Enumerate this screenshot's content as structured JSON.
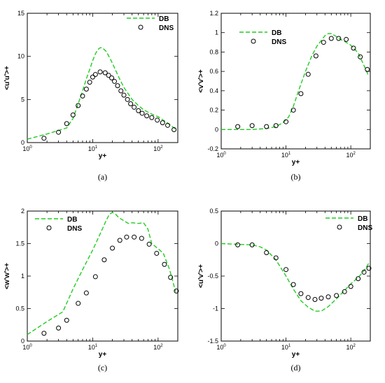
{
  "chart_data": [
    {
      "type": "line",
      "caption": "(a)",
      "xlabel": "y+",
      "ylabel": "<u'u'>+",
      "xscale": "log",
      "xlim": [
        1,
        200
      ],
      "ylim": [
        0,
        15
      ],
      "yticks": [
        0,
        5,
        10,
        15
      ],
      "ytick_labels": [
        "0",
        "5",
        "10",
        "15"
      ],
      "legend_position": "top-right",
      "series": [
        {
          "name": "DB",
          "style": "dashed-line",
          "color": "#22cc22",
          "x": [
            1,
            2,
            3,
            4,
            5,
            6,
            7,
            8,
            9,
            10,
            11,
            12,
            13,
            14,
            16,
            18,
            20,
            25,
            30,
            40,
            50,
            60,
            80,
            100,
            120,
            150,
            190
          ],
          "y": [
            0.4,
            1.0,
            1.4,
            1.7,
            2.8,
            4.5,
            6.0,
            7.4,
            8.5,
            9.5,
            10.3,
            10.8,
            11.0,
            11.0,
            10.6,
            9.9,
            9.2,
            7.6,
            6.4,
            5.0,
            4.3,
            3.8,
            3.3,
            3.0,
            2.6,
            2.1,
            1.5
          ]
        },
        {
          "name": "DNS",
          "style": "open-circle",
          "color": "#000000",
          "x": [
            1.8,
            3.0,
            4.0,
            5.0,
            6.0,
            7.0,
            8.0,
            9.0,
            10.0,
            11.0,
            13.0,
            15.5,
            17.5,
            19.5,
            21.5,
            24.0,
            27.0,
            30.0,
            34.0,
            38.0,
            43.0,
            50.0,
            57.0,
            67.0,
            80.0,
            97.0,
            117.0,
            140.0,
            175.0
          ],
          "y": [
            0.5,
            1.2,
            2.2,
            3.2,
            4.3,
            5.4,
            6.2,
            7.0,
            7.6,
            7.9,
            8.2,
            8.1,
            7.8,
            7.5,
            7.1,
            6.6,
            6.0,
            5.5,
            5.0,
            4.5,
            4.1,
            3.7,
            3.4,
            3.1,
            2.9,
            2.6,
            2.3,
            2.0,
            1.5
          ]
        }
      ]
    },
    {
      "type": "line",
      "caption": "(b)",
      "xlabel": "y+",
      "ylabel": "<v'v'>+",
      "xscale": "log",
      "xlim": [
        1,
        200
      ],
      "ylim": [
        -0.2,
        1.2
      ],
      "yticks": [
        -0.2,
        0,
        0.2,
        0.4,
        0.6,
        0.8,
        1,
        1.2
      ],
      "ytick_labels": [
        "-0.2",
        "0",
        "0.2",
        "0.4",
        "0.6",
        "0.8",
        "1",
        "1.2"
      ],
      "legend_position": "top-left",
      "series": [
        {
          "name": "DB",
          "style": "dashed-line",
          "color": "#22cc22",
          "x": [
            1,
            3,
            5,
            7,
            9,
            11,
            13,
            16,
            20,
            25,
            30,
            40,
            45,
            50,
            60,
            70,
            80,
            100,
            130,
            160,
            190
          ],
          "y": [
            0.0,
            0.0,
            0.01,
            0.03,
            0.07,
            0.13,
            0.24,
            0.42,
            0.6,
            0.76,
            0.86,
            0.97,
            0.99,
            0.99,
            0.96,
            0.93,
            0.91,
            0.87,
            0.79,
            0.66,
            0.55
          ]
        },
        {
          "name": "DNS",
          "style": "open-circle",
          "color": "#000000",
          "x": [
            1.8,
            3.0,
            5.0,
            7.0,
            10.0,
            13.0,
            17.0,
            22.0,
            29.0,
            38.0,
            50.0,
            65.0,
            85.0,
            110.0,
            140.0,
            180.0
          ],
          "y": [
            0.03,
            0.04,
            0.03,
            0.04,
            0.08,
            0.2,
            0.37,
            0.57,
            0.76,
            0.9,
            0.94,
            0.94,
            0.93,
            0.84,
            0.75,
            0.62
          ]
        }
      ]
    },
    {
      "type": "line",
      "caption": "(c)",
      "xlabel": "y+",
      "ylabel": "<w'w'>+",
      "xscale": "log",
      "xlim": [
        1,
        200
      ],
      "ylim": [
        0,
        2
      ],
      "yticks": [
        0,
        0.5,
        1,
        1.5,
        2
      ],
      "ytick_labels": [
        "0",
        "0.5",
        "1",
        "1.5",
        "2"
      ],
      "legend_position": "top-left",
      "series": [
        {
          "name": "DB",
          "style": "dashed-line",
          "color": "#22cc22",
          "x": [
            1,
            2,
            3.5,
            5,
            7,
            10,
            13,
            16,
            18,
            20,
            22,
            25,
            30,
            35,
            40,
            50,
            60,
            70,
            80,
            100,
            120,
            150,
            185
          ],
          "y": [
            0.1,
            0.3,
            0.45,
            0.8,
            1.1,
            1.4,
            1.65,
            1.85,
            1.95,
            1.98,
            1.96,
            1.9,
            1.85,
            1.81,
            1.82,
            1.81,
            1.82,
            1.72,
            1.5,
            1.42,
            1.35,
            1.1,
            0.76
          ]
        },
        {
          "name": "DNS",
          "style": "open-circle",
          "color": "#000000",
          "x": [
            1.8,
            3.0,
            4.0,
            6.0,
            8.0,
            11.0,
            15.0,
            20.0,
            26.0,
            33.0,
            43.0,
            56.0,
            73.0,
            95.0,
            125.0,
            155.0,
            190.0
          ],
          "y": [
            0.12,
            0.2,
            0.32,
            0.58,
            0.74,
            0.99,
            1.25,
            1.43,
            1.55,
            1.6,
            1.6,
            1.58,
            1.49,
            1.35,
            1.18,
            0.98,
            0.77
          ]
        }
      ]
    },
    {
      "type": "line",
      "caption": "(d)",
      "xlabel": "y+",
      "ylabel": "<u'v'>+",
      "xscale": "log",
      "xlim": [
        1,
        200
      ],
      "ylim": [
        -1.5,
        0.5
      ],
      "yticks": [
        -1.5,
        -1,
        -0.5,
        0,
        0.5
      ],
      "ytick_labels": [
        "-1.5",
        "-1",
        "-0.5",
        "0",
        "0.5"
      ],
      "legend_position": "top-right",
      "series": [
        {
          "name": "DB",
          "style": "dashed-line",
          "color": "#22cc22",
          "x": [
            1,
            3,
            4,
            5,
            7,
            10,
            13,
            17,
            22,
            28,
            35,
            45,
            60,
            80,
            100,
            130,
            160,
            190
          ],
          "y": [
            0.0,
            -0.02,
            -0.05,
            -0.1,
            -0.25,
            -0.5,
            -0.7,
            -0.88,
            -0.98,
            -1.04,
            -1.04,
            -0.97,
            -0.85,
            -0.72,
            -0.62,
            -0.52,
            -0.42,
            -0.3
          ]
        },
        {
          "name": "DNS",
          "style": "open-circle",
          "color": "#000000",
          "x": [
            1.8,
            3.0,
            5.0,
            7.0,
            10.0,
            13.0,
            17.0,
            22.0,
            28.0,
            35.0,
            45.0,
            60.0,
            80.0,
            100.0,
            130.0,
            160.0,
            190.0
          ],
          "y": [
            -0.02,
            -0.02,
            -0.14,
            -0.22,
            -0.4,
            -0.63,
            -0.77,
            -0.83,
            -0.86,
            -0.84,
            -0.82,
            -0.8,
            -0.74,
            -0.66,
            -0.54,
            -0.44,
            -0.38
          ]
        }
      ]
    }
  ]
}
